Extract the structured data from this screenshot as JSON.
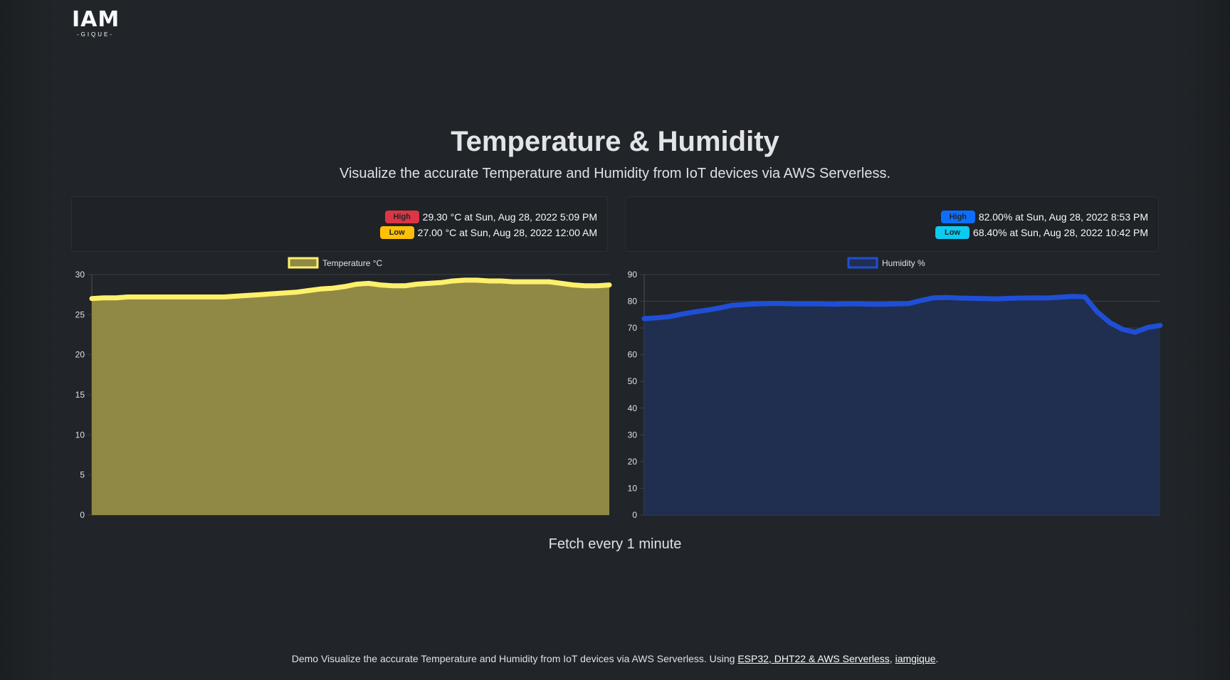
{
  "logo": {
    "main": "IAM",
    "sub": "-GIQUE-"
  },
  "title": "Temperature & Humidity",
  "subtitle": "Visualize the accurate Temperature and Humidity from IoT devices via AWS Serverless.",
  "temperature_stats": {
    "high": {
      "badge": "High",
      "text": "29.30 °C at Sun, Aug 28, 2022 5:09 PM"
    },
    "low": {
      "badge": "Low",
      "text": "27.00 °C at Sun, Aug 28, 2022 12:00 AM"
    }
  },
  "humidity_stats": {
    "high": {
      "badge": "High",
      "text": "82.00% at Sun, Aug 28, 2022 8:53 PM"
    },
    "low": {
      "badge": "Low",
      "text": "68.40% at Sun, Aug 28, 2022 10:42 PM"
    }
  },
  "fetch_note": "Fetch every 1 minute",
  "footer": {
    "prefix": "Demo Visualize the accurate Temperature and Humidity from IoT devices via AWS Serverless. Using ",
    "link1": "ESP32, DHT22 & AWS Serverless",
    "separator": ", ",
    "link2": "iamgique",
    "suffix": "."
  },
  "colors": {
    "background": "#212529",
    "temp_line": "#fff06b",
    "temp_fill": "#8f8945",
    "hum_line": "#1f4fd6",
    "hum_fill": "#202e50",
    "badge_high_temp": "#dc3545",
    "badge_low_temp": "#ffc107",
    "badge_high_hum": "#0d6efd",
    "badge_low_hum": "#0dcaf0"
  },
  "chart_data": [
    {
      "type": "area",
      "legend": "Temperature °C",
      "legend_position": "top",
      "ylim": [
        0,
        30
      ],
      "yticks": [
        0,
        5,
        10,
        15,
        20,
        25,
        30
      ],
      "grid": true,
      "x_labels_visible": false,
      "series": [
        {
          "name": "Temperature °C",
          "values": [
            27.0,
            27.1,
            27.1,
            27.2,
            27.2,
            27.2,
            27.2,
            27.2,
            27.2,
            27.2,
            27.2,
            27.2,
            27.3,
            27.4,
            27.5,
            27.6,
            27.7,
            27.8,
            28.0,
            28.2,
            28.3,
            28.5,
            28.8,
            28.9,
            28.7,
            28.6,
            28.6,
            28.8,
            28.9,
            29.0,
            29.2,
            29.3,
            29.3,
            29.2,
            29.2,
            29.1,
            29.1,
            29.1,
            29.1,
            28.9,
            28.7,
            28.6,
            28.6,
            28.7
          ]
        }
      ]
    },
    {
      "type": "area",
      "legend": "Humidity %",
      "legend_position": "top",
      "ylim": [
        0,
        90
      ],
      "yticks": [
        0,
        10,
        20,
        30,
        40,
        50,
        60,
        70,
        80,
        90
      ],
      "grid": true,
      "x_labels_visible": false,
      "series": [
        {
          "name": "Humidity %",
          "values": [
            73.5,
            73.8,
            74.2,
            75.2,
            76.0,
            76.7,
            77.5,
            78.5,
            78.8,
            79.0,
            79.2,
            79.2,
            79.0,
            79.0,
            79.0,
            78.9,
            79.0,
            79.0,
            78.9,
            78.9,
            79.0,
            79.1,
            80.3,
            81.3,
            81.4,
            81.2,
            81.1,
            81.0,
            80.9,
            81.1,
            81.2,
            81.3,
            81.2,
            81.5,
            81.8,
            81.7,
            76.0,
            72.0,
            69.5,
            68.4,
            70.2,
            71.0
          ]
        }
      ]
    }
  ]
}
